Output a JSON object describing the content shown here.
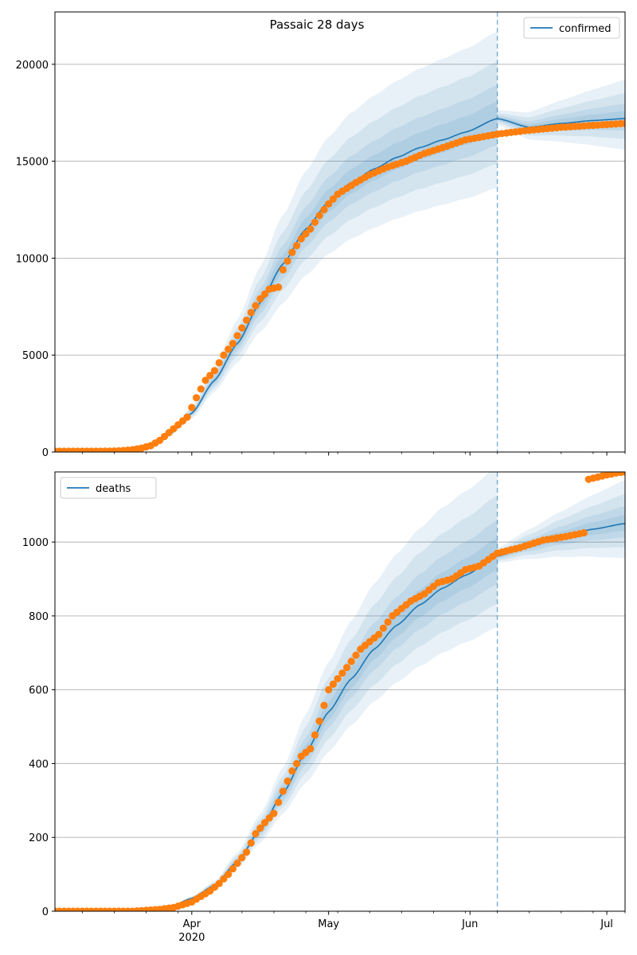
{
  "figure": {
    "title": "Passaic 28 days"
  },
  "colors": {
    "model": "#1f77b4",
    "observed": "#ff7f0e",
    "band": "#1f77b4",
    "grid": "#b0b0b0"
  },
  "chart_data": [
    {
      "type": "line",
      "legend": {
        "label": "confirmed",
        "placement": "top-right"
      },
      "ylim": [
        0,
        22700
      ],
      "yticks": [
        0,
        5000,
        10000,
        15000,
        20000
      ],
      "xlim": [
        "2020-03-02",
        "2020-07-05"
      ],
      "grid": "y",
      "cutoff_date": "2020-06-07",
      "model_anchors": [
        [
          "2020-03-02",
          0
        ],
        [
          "2020-03-17",
          60
        ],
        [
          "2020-03-22",
          250
        ],
        [
          "2020-03-27",
          900
        ],
        [
          "2020-04-01",
          2000
        ],
        [
          "2020-04-06",
          3700
        ],
        [
          "2020-04-11",
          5600
        ],
        [
          "2020-04-16",
          7700
        ],
        [
          "2020-04-21",
          9700
        ],
        [
          "2020-04-26",
          11500
        ],
        [
          "2020-05-01",
          12900
        ],
        [
          "2020-05-06",
          13900
        ],
        [
          "2020-05-11",
          14600
        ],
        [
          "2020-05-16",
          15200
        ],
        [
          "2020-05-21",
          15700
        ],
        [
          "2020-05-26",
          16100
        ],
        [
          "2020-05-31",
          16500
        ],
        [
          "2020-06-07",
          17200
        ],
        [
          "2020-06-14",
          16750
        ],
        [
          "2020-06-21",
          16950
        ],
        [
          "2020-06-28",
          17100
        ],
        [
          "2020-07-05",
          17200
        ]
      ],
      "band_widths": [
        0.05,
        0.1,
        0.17,
        0.26
      ],
      "observed": [
        [
          "2020-03-02",
          40
        ],
        [
          "2020-03-12",
          40
        ],
        [
          "2020-03-16",
          60
        ],
        [
          "2020-03-19",
          120
        ],
        [
          "2020-03-21",
          200
        ],
        [
          "2020-03-23",
          330
        ],
        [
          "2020-03-25",
          600
        ],
        [
          "2020-03-27",
          1000
        ],
        [
          "2020-03-29",
          1400
        ],
        [
          "2020-03-31",
          1800
        ],
        [
          "2020-04-02",
          2800
        ],
        [
          "2020-04-04",
          3700
        ],
        [
          "2020-04-06",
          4200
        ],
        [
          "2020-04-08",
          5000
        ],
        [
          "2020-04-10",
          5600
        ],
        [
          "2020-04-12",
          6400
        ],
        [
          "2020-04-14",
          7200
        ],
        [
          "2020-04-16",
          7900
        ],
        [
          "2020-04-18",
          8400
        ],
        [
          "2020-04-20",
          8500
        ],
        [
          "2020-04-21",
          9400
        ],
        [
          "2020-04-23",
          10300
        ],
        [
          "2020-04-25",
          11000
        ],
        [
          "2020-04-27",
          11500
        ],
        [
          "2020-04-29",
          12200
        ],
        [
          "2020-05-01",
          12800
        ],
        [
          "2020-05-03",
          13300
        ],
        [
          "2020-05-05",
          13600
        ],
        [
          "2020-05-07",
          13900
        ],
        [
          "2020-05-10",
          14300
        ],
        [
          "2020-05-14",
          14700
        ],
        [
          "2020-05-18",
          15000
        ],
        [
          "2020-05-22",
          15400
        ],
        [
          "2020-05-26",
          15700
        ],
        [
          "2020-05-31",
          16100
        ],
        [
          "2020-06-07",
          16400
        ],
        [
          "2020-06-14",
          16600
        ],
        [
          "2020-06-21",
          16750
        ],
        [
          "2020-06-28",
          16850
        ],
        [
          "2020-07-05",
          16950
        ]
      ]
    },
    {
      "type": "line",
      "legend": {
        "label": "deaths",
        "placement": "top-left"
      },
      "ylim": [
        0,
        1190
      ],
      "yticks": [
        0,
        200,
        400,
        600,
        800,
        1000
      ],
      "xlim": [
        "2020-03-02",
        "2020-07-05"
      ],
      "grid": "y",
      "cutoff_date": "2020-06-07",
      "model_anchors": [
        [
          "2020-03-02",
          0
        ],
        [
          "2020-03-22",
          2
        ],
        [
          "2020-03-27",
          10
        ],
        [
          "2020-04-01",
          35
        ],
        [
          "2020-04-06",
          70
        ],
        [
          "2020-04-11",
          135
        ],
        [
          "2020-04-16",
          220
        ],
        [
          "2020-04-21",
          320
        ],
        [
          "2020-04-26",
          430
        ],
        [
          "2020-05-01",
          540
        ],
        [
          "2020-05-06",
          630
        ],
        [
          "2020-05-11",
          710
        ],
        [
          "2020-05-16",
          775
        ],
        [
          "2020-05-21",
          830
        ],
        [
          "2020-05-26",
          875
        ],
        [
          "2020-05-31",
          910
        ],
        [
          "2020-06-07",
          962
        ],
        [
          "2020-06-14",
          990
        ],
        [
          "2020-06-21",
          1015
        ],
        [
          "2020-06-28",
          1035
        ],
        [
          "2020-07-05",
          1050
        ]
      ],
      "band_widths": [
        0.05,
        0.1,
        0.17,
        0.25
      ],
      "observed": [
        [
          "2020-03-02",
          0
        ],
        [
          "2020-03-19",
          0
        ],
        [
          "2020-03-25",
          5
        ],
        [
          "2020-03-28",
          10
        ],
        [
          "2020-04-01",
          25
        ],
        [
          "2020-04-03",
          40
        ],
        [
          "2020-04-05",
          55
        ],
        [
          "2020-04-07",
          75
        ],
        [
          "2020-04-09",
          100
        ],
        [
          "2020-04-11",
          130
        ],
        [
          "2020-04-13",
          160
        ],
        [
          "2020-04-15",
          210
        ],
        [
          "2020-04-17",
          240
        ],
        [
          "2020-04-19",
          265
        ],
        [
          "2020-04-21",
          325
        ],
        [
          "2020-04-23",
          380
        ],
        [
          "2020-04-25",
          420
        ],
        [
          "2020-04-27",
          440
        ],
        [
          "2020-04-29",
          515
        ],
        [
          "2020-05-01",
          600
        ],
        [
          "2020-05-03",
          630
        ],
        [
          "2020-05-05",
          660
        ],
        [
          "2020-05-08",
          710
        ],
        [
          "2020-05-12",
          750
        ],
        [
          "2020-05-15",
          800
        ],
        [
          "2020-05-19",
          840
        ],
        [
          "2020-05-22",
          860
        ],
        [
          "2020-05-25",
          890
        ],
        [
          "2020-05-28",
          900
        ],
        [
          "2020-05-31",
          925
        ],
        [
          "2020-06-03",
          935
        ],
        [
          "2020-06-07",
          970
        ],
        [
          "2020-06-12",
          985
        ],
        [
          "2020-06-17",
          1005
        ],
        [
          "2020-06-22",
          1015
        ],
        [
          "2020-06-26",
          1025
        ]
      ],
      "observed_extra": [
        [
          "2020-06-27",
          1170
        ],
        [
          "2020-06-29",
          1176
        ],
        [
          "2020-07-01",
          1182
        ],
        [
          "2020-07-03",
          1187
        ],
        [
          "2020-07-05",
          1190
        ]
      ]
    }
  ],
  "xaxis": {
    "month_ticks": [
      {
        "date": "2020-04-01",
        "label": "Apr",
        "sublabel": "2020"
      },
      {
        "date": "2020-05-01",
        "label": "May"
      },
      {
        "date": "2020-06-01",
        "label": "Jun"
      },
      {
        "date": "2020-07-01",
        "label": "Jul"
      }
    ],
    "minor_tick_dates": [
      "2020-03-08",
      "2020-03-15",
      "2020-03-22",
      "2020-03-29",
      "2020-04-05",
      "2020-04-12",
      "2020-04-19",
      "2020-04-26",
      "2020-05-03",
      "2020-05-10",
      "2020-05-17",
      "2020-05-24",
      "2020-05-31",
      "2020-06-07",
      "2020-06-14",
      "2020-06-21",
      "2020-06-28",
      "2020-07-05"
    ]
  }
}
